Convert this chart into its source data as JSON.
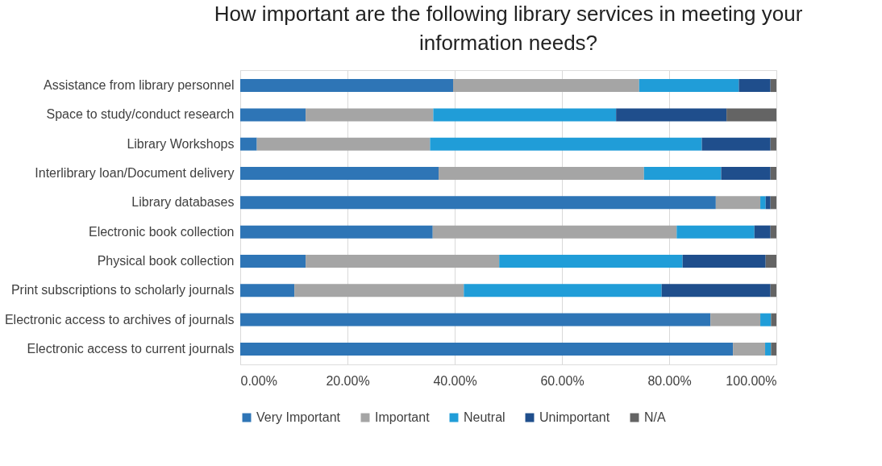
{
  "chart_data": {
    "type": "bar",
    "orientation": "horizontal",
    "stacked": true,
    "title": "How important are the following library services in meeting your information needs?",
    "categories": [
      "Assistance from library personnel",
      "Space to study/conduct research",
      "Library Workshops",
      "Interlibrary loan/Document delivery",
      "Library databases",
      "Electronic book collection",
      "Physical book collection",
      "Print subscriptions to scholarly journals",
      "Electronic access to archives of journals",
      "Electronic access to current journals"
    ],
    "series": [
      {
        "name": "Very Important",
        "color": "#2e75b6",
        "values": [
          39.7,
          12.2,
          3.1,
          37.0,
          88.7,
          35.9,
          12.2,
          10.1,
          87.7,
          91.9
        ]
      },
      {
        "name": "Important",
        "color": "#a5a5a5",
        "values": [
          34.7,
          23.8,
          32.3,
          38.3,
          8.3,
          45.5,
          36.1,
          31.6,
          9.3,
          6.0
        ]
      },
      {
        "name": "Neutral",
        "color": "#209dd8",
        "values": [
          18.6,
          34.1,
          50.7,
          14.4,
          1.0,
          14.5,
          34.2,
          36.9,
          2.0,
          1.1
        ]
      },
      {
        "name": "Unimportant",
        "color": "#1f4e8c",
        "values": [
          5.9,
          20.6,
          12.8,
          9.2,
          0.9,
          3.0,
          15.5,
          20.3,
          0,
          0
        ]
      },
      {
        "name": "N/A",
        "color": "#646464",
        "values": [
          1.1,
          9.3,
          1.1,
          1.1,
          1.1,
          1.1,
          2.0,
          1.1,
          1.0,
          1.0
        ]
      }
    ],
    "xlim": [
      0,
      100
    ],
    "xticks": [
      {
        "value": 0,
        "label": "0.00%"
      },
      {
        "value": 20,
        "label": "20.00%"
      },
      {
        "value": 40,
        "label": "40.00%"
      },
      {
        "value": 60,
        "label": "60.00%"
      },
      {
        "value": 80,
        "label": "80.00%"
      },
      {
        "value": 100,
        "label": "100.00%"
      }
    ],
    "grid": "x",
    "legend": "bottom"
  }
}
